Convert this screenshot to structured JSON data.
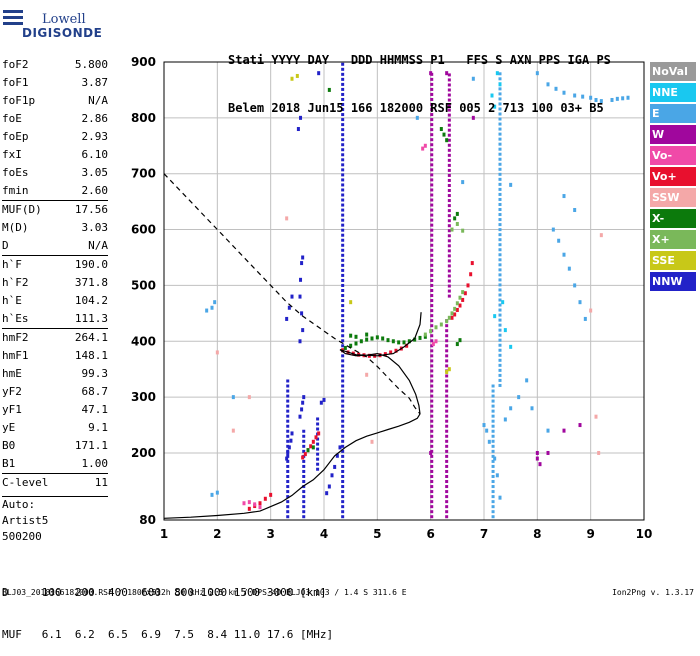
{
  "logo": {
    "line1": "Lowell",
    "line2": "DIGISONDE"
  },
  "header": {
    "line1": "Stati YYYY DAY   DDD HHMMSS P1   FFS S AXN PPS IGA PS",
    "line2": "Belem 2018 Jun15 166 182000 RSF 005 2 713 100 03+ B5"
  },
  "params": [
    {
      "label": "foF2",
      "value": "5.800"
    },
    {
      "label": "foF1",
      "value": "3.87"
    },
    {
      "label": "foF1p",
      "value": "N/A"
    },
    {
      "label": "foE",
      "value": "2.86"
    },
    {
      "label": "foEp",
      "value": "2.93"
    },
    {
      "label": "fxI",
      "value": "6.10"
    },
    {
      "label": "foEs",
      "value": "3.05"
    },
    {
      "label": "fmin",
      "value": "2.60"
    },
    {
      "label": "MUF(D)",
      "value": "17.56",
      "sep": true
    },
    {
      "label": "M(D)",
      "value": "3.03"
    },
    {
      "label": "D",
      "value": "N/A"
    },
    {
      "label": "h`F",
      "value": "190.0",
      "sep": true
    },
    {
      "label": "h`F2",
      "value": "371.8"
    },
    {
      "label": "h`E",
      "value": "104.2"
    },
    {
      "label": "h`Es",
      "value": "111.3"
    },
    {
      "label": "hmF2",
      "value": "264.1",
      "sep": true
    },
    {
      "label": "hmF1",
      "value": "148.1"
    },
    {
      "label": "hmE",
      "value": "99.3"
    },
    {
      "label": "yF2",
      "value": "68.7"
    },
    {
      "label": "yF1",
      "value": "47.1"
    },
    {
      "label": "yE",
      "value": "9.1"
    },
    {
      "label": "B0",
      "value": "171.1"
    },
    {
      "label": "B1",
      "value": "1.00"
    },
    {
      "label": "C-level",
      "value": "11",
      "sep": true
    }
  ],
  "autoscaling": {
    "line1": "Auto:",
    "line2": "Artist5",
    "line3": "500200"
  },
  "legend": [
    {
      "label": "NoVal",
      "color": "#9a9a9a"
    },
    {
      "label": "NNE",
      "color": "#19c8f0"
    },
    {
      "label": "E",
      "color": "#4aa6e6"
    },
    {
      "label": "W",
      "color": "#a0079d"
    },
    {
      "label": "Vo-",
      "color": "#f04aa8"
    },
    {
      "label": "Vo+",
      "color": "#e8102e"
    },
    {
      "label": "SSW",
      "color": "#f4a8a8"
    },
    {
      "label": "X-",
      "color": "#0c7a0c"
    },
    {
      "label": "X+",
      "color": "#7ab85a"
    },
    {
      "label": "SSE",
      "color": "#c8c818"
    },
    {
      "label": "NNW",
      "color": "#2222c8"
    }
  ],
  "muf_table": {
    "row1": "D     100  200  400  600  800 1000 1500 3000 [km]",
    "row2": "MUF   6.1  6.2  6.5  6.9  7.5  8.4 11.0 17.6 [MHz]"
  },
  "footer": "BLJ03_2018166182000.RSF / 180fx512h 50 kHz 2.5 km / DPS-4D BLJ03 103 / 1.4 S 311.6 E",
  "version": "Ion2Png v. 1.3.17",
  "chart_data": {
    "type": "scatter",
    "xlim": [
      1,
      10
    ],
    "ylim": [
      80,
      900
    ],
    "x_ticks": [
      "1",
      "2",
      "3",
      "4",
      "5",
      "6",
      "7",
      "8",
      "9",
      "10"
    ],
    "y_ticks": [
      "80",
      "200",
      "300",
      "400",
      "500",
      "600",
      "700",
      "800",
      "900"
    ],
    "grid": true,
    "curves": {
      "profile_solid": [
        [
          1,
          83
        ],
        [
          1.5,
          85
        ],
        [
          2,
          88
        ],
        [
          2.5,
          92
        ],
        [
          2.8,
          96
        ],
        [
          3,
          104
        ],
        [
          3.2,
          112
        ],
        [
          3.4,
          124
        ],
        [
          3.6,
          140
        ],
        [
          3.8,
          152
        ],
        [
          4,
          170
        ],
        [
          4.2,
          195
        ],
        [
          4.4,
          210
        ],
        [
          4.6,
          222
        ],
        [
          4.8,
          230
        ],
        [
          5,
          236
        ],
        [
          5.2,
          242
        ],
        [
          5.4,
          248
        ],
        [
          5.6,
          255
        ],
        [
          5.75,
          262
        ],
        [
          5.8,
          270
        ],
        [
          5.78,
          285
        ],
        [
          5.72,
          305
        ],
        [
          5.6,
          330
        ],
        [
          5.4,
          356
        ],
        [
          5.2,
          372
        ],
        [
          5.0,
          378
        ],
        [
          4.8,
          375
        ],
        [
          4.6,
          374
        ],
        [
          4.4,
          378
        ],
        [
          4.3,
          385
        ],
        [
          4.4,
          382
        ],
        [
          4.6,
          376
        ],
        [
          5,
          374
        ],
        [
          5.3,
          378
        ],
        [
          5.5,
          390
        ],
        [
          5.7,
          405
        ],
        [
          5.8,
          430
        ],
        [
          5.82,
          452
        ]
      ],
      "profile_dashed": [
        [
          1,
          700
        ],
        [
          1.2,
          680
        ],
        [
          1.5,
          650
        ],
        [
          1.8,
          620
        ],
        [
          2.1,
          590
        ],
        [
          2.4,
          560
        ],
        [
          2.7,
          530
        ],
        [
          3.0,
          500
        ],
        [
          3.3,
          470
        ],
        [
          3.6,
          445
        ],
        [
          3.9,
          425
        ],
        [
          4.2,
          405
        ],
        [
          4.5,
          388
        ],
        [
          4.8,
          372
        ],
        [
          5.0,
          355
        ],
        [
          5.2,
          335
        ],
        [
          5.4,
          315
        ],
        [
          5.6,
          298
        ],
        [
          5.7,
          282
        ],
        [
          5.8,
          270
        ]
      ]
    },
    "traces": {
      "Vo+": [
        [
          3.6,
          192
        ],
        [
          3.65,
          198
        ],
        [
          3.7,
          205
        ],
        [
          3.75,
          212
        ],
        [
          3.8,
          220
        ],
        [
          3.85,
          228
        ],
        [
          3.9,
          235
        ],
        [
          4.35,
          384
        ],
        [
          4.45,
          380
        ],
        [
          4.55,
          378
        ],
        [
          4.65,
          376
        ],
        [
          4.75,
          375
        ],
        [
          4.85,
          374
        ],
        [
          4.95,
          374
        ],
        [
          5.05,
          375
        ],
        [
          5.15,
          377
        ],
        [
          5.25,
          380
        ],
        [
          5.35,
          383
        ],
        [
          5.45,
          387
        ],
        [
          5.55,
          392
        ],
        [
          6.4,
          442
        ],
        [
          6.45,
          448
        ],
        [
          6.5,
          456
        ],
        [
          6.55,
          464
        ],
        [
          6.6,
          474
        ],
        [
          6.65,
          486
        ],
        [
          6.7,
          500
        ],
        [
          6.75,
          520
        ],
        [
          6.78,
          540
        ],
        [
          2.6,
          100
        ],
        [
          2.7,
          105
        ],
        [
          2.8,
          110
        ],
        [
          2.9,
          118
        ],
        [
          3.0,
          125
        ]
      ],
      "X-": [
        [
          4.4,
          388
        ],
        [
          4.5,
          392
        ],
        [
          4.6,
          396
        ],
        [
          4.7,
          400
        ],
        [
          4.8,
          403
        ],
        [
          4.9,
          405
        ],
        [
          5.0,
          407
        ],
        [
          5.1,
          405
        ],
        [
          5.2,
          402
        ],
        [
          5.3,
          400
        ],
        [
          5.4,
          398
        ],
        [
          5.5,
          398
        ],
        [
          5.6,
          400
        ],
        [
          5.7,
          403
        ],
        [
          5.8,
          406
        ],
        [
          5.9,
          408
        ],
        [
          4.5,
          410
        ],
        [
          4.6,
          408
        ],
        [
          4.8,
          412
        ],
        [
          6.5,
          395
        ],
        [
          6.55,
          402
        ],
        [
          3.7,
          205
        ],
        [
          3.8,
          210
        ],
        [
          6.2,
          780
        ],
        [
          6.25,
          770
        ],
        [
          6.3,
          760
        ],
        [
          6.45,
          620
        ],
        [
          6.5,
          628
        ],
        [
          4.1,
          850
        ]
      ],
      "X+": [
        [
          5.9,
          412
        ],
        [
          6.0,
          418
        ],
        [
          6.1,
          425
        ],
        [
          6.2,
          430
        ],
        [
          6.3,
          436
        ],
        [
          6.35,
          442
        ],
        [
          6.4,
          450
        ],
        [
          6.45,
          458
        ],
        [
          6.5,
          468
        ],
        [
          6.55,
          478
        ],
        [
          6.6,
          488
        ],
        [
          6.4,
          600
        ],
        [
          6.5,
          610
        ],
        [
          6.6,
          598
        ]
      ],
      "Vo-": [
        [
          2.5,
          110
        ],
        [
          2.6,
          112
        ],
        [
          2.7,
          108
        ],
        [
          2.8,
          103
        ],
        [
          5.85,
          745
        ],
        [
          5.9,
          750
        ],
        [
          6.05,
          395
        ],
        [
          6.1,
          400
        ]
      ],
      "SSW": [
        [
          2.3,
          240
        ],
        [
          2.6,
          300
        ],
        [
          2.0,
          380
        ],
        [
          3.3,
          620
        ],
        [
          9.0,
          455
        ],
        [
          9.1,
          265
        ],
        [
          9.15,
          200
        ],
        [
          9.2,
          590
        ],
        [
          4.8,
          340
        ],
        [
          4.9,
          220
        ]
      ],
      "SSE": [
        [
          6.35,
          350
        ],
        [
          6.3,
          345
        ],
        [
          4.5,
          470
        ],
        [
          3.4,
          870
        ],
        [
          3.5,
          875
        ]
      ],
      "E": [
        [
          1.8,
          455
        ],
        [
          1.9,
          460
        ],
        [
          1.95,
          470
        ],
        [
          2.3,
          300
        ],
        [
          1.9,
          125
        ],
        [
          2.0,
          129
        ],
        [
          5.75,
          800
        ],
        [
          6.6,
          685
        ],
        [
          6.8,
          870
        ],
        [
          7.5,
          680
        ],
        [
          8.0,
          880
        ],
        [
          8.2,
          860
        ],
        [
          8.35,
          852
        ],
        [
          8.5,
          845
        ],
        [
          8.7,
          840
        ],
        [
          8.85,
          838
        ],
        [
          9.0,
          836
        ],
        [
          9.1,
          832
        ],
        [
          9.2,
          830
        ],
        [
          9.4,
          832
        ],
        [
          9.5,
          834
        ],
        [
          9.6,
          835
        ],
        [
          9.7,
          836
        ],
        [
          8.3,
          600
        ],
        [
          8.4,
          580
        ],
        [
          8.5,
          555
        ],
        [
          8.6,
          530
        ],
        [
          8.7,
          500
        ],
        [
          8.8,
          470
        ],
        [
          8.9,
          440
        ],
        [
          8.5,
          660
        ],
        [
          8.7,
          635
        ],
        [
          7.0,
          250
        ],
        [
          7.05,
          240
        ],
        [
          7.1,
          220
        ],
        [
          7.2,
          190
        ],
        [
          7.25,
          160
        ],
        [
          7.3,
          120
        ],
        [
          7.4,
          260
        ],
        [
          7.5,
          280
        ],
        [
          7.65,
          300
        ],
        [
          7.8,
          330
        ],
        [
          7.9,
          280
        ],
        [
          8.2,
          240
        ]
      ],
      "NNE": [
        [
          7.25,
          880
        ],
        [
          7.3,
          860
        ],
        [
          7.15,
          840
        ],
        [
          7.2,
          820
        ],
        [
          7.35,
          470
        ],
        [
          7.2,
          445
        ],
        [
          7.4,
          420
        ],
        [
          7.5,
          390
        ]
      ],
      "NNW": [
        [
          3.3,
          190
        ],
        [
          3.32,
          200
        ],
        [
          3.35,
          210
        ],
        [
          3.38,
          222
        ],
        [
          3.4,
          235
        ],
        [
          3.55,
          265
        ],
        [
          3.58,
          278
        ],
        [
          3.6,
          290
        ],
        [
          3.62,
          300
        ],
        [
          3.55,
          400
        ],
        [
          3.6,
          420
        ],
        [
          3.58,
          450
        ],
        [
          3.55,
          480
        ],
        [
          3.56,
          510
        ],
        [
          3.58,
          540
        ],
        [
          3.6,
          550
        ],
        [
          3.3,
          440
        ],
        [
          3.35,
          460
        ],
        [
          3.4,
          480
        ],
        [
          3.52,
          780
        ],
        [
          3.56,
          800
        ],
        [
          4.05,
          128
        ],
        [
          4.1,
          140
        ],
        [
          4.15,
          160
        ],
        [
          4.2,
          175
        ],
        [
          4.25,
          195
        ],
        [
          4.3,
          210
        ],
        [
          3.95,
          290
        ],
        [
          4.0,
          295
        ],
        [
          3.9,
          880
        ]
      ],
      "W": [
        [
          6.0,
          880
        ],
        [
          6.0,
          200
        ],
        [
          6.3,
          880
        ],
        [
          6.8,
          800
        ],
        [
          8.0,
          200
        ],
        [
          8.0,
          190
        ],
        [
          8.05,
          180
        ],
        [
          8.2,
          200
        ],
        [
          8.5,
          240
        ],
        [
          8.8,
          250
        ]
      ]
    },
    "vertical_streaks": [
      {
        "series": "NNW",
        "x": 4.35,
        "y0": 85,
        "y1": 900
      },
      {
        "series": "W",
        "x": 6.02,
        "y0": 85,
        "y1": 880
      },
      {
        "series": "W",
        "x": 6.3,
        "y0": 85,
        "y1": 440
      },
      {
        "series": "E",
        "x": 7.17,
        "y0": 85,
        "y1": 320
      },
      {
        "series": "NNW",
        "x": 3.32,
        "y0": 85,
        "y1": 330
      },
      {
        "series": "NNW",
        "x": 3.62,
        "y0": 85,
        "y1": 240
      },
      {
        "series": "W",
        "x": 6.35,
        "y0": 480,
        "y1": 880
      },
      {
        "series": "E",
        "x": 7.3,
        "y0": 320,
        "y1": 880
      },
      {
        "series": "NNW",
        "x": 3.88,
        "y0": 170,
        "y1": 260
      }
    ]
  }
}
